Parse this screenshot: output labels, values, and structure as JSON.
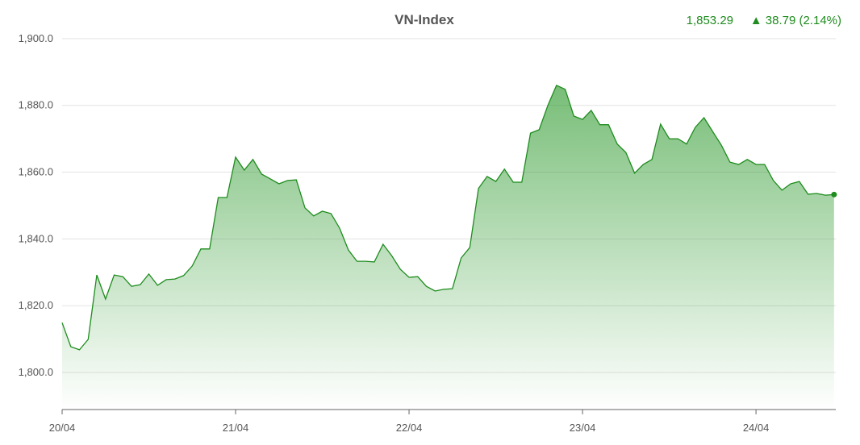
{
  "chart_data": {
    "type": "area",
    "title": "VN-Index",
    "last_value": "1,853.29",
    "change": "▲ 38.79 (2.14%)",
    "color": "#1e8c1e",
    "x": [
      0,
      0.05,
      0.1,
      0.15,
      0.2,
      0.25,
      0.3,
      0.35,
      0.4,
      0.45,
      0.5,
      0.55,
      0.6,
      0.65,
      0.7,
      0.75,
      0.8,
      0.85,
      0.9,
      0.95,
      1,
      1.05,
      1.1,
      1.15,
      1.2,
      1.25,
      1.3,
      1.35,
      1.4,
      1.45,
      1.5,
      1.55,
      1.6,
      1.65,
      1.7,
      1.75,
      1.8,
      1.85,
      1.9,
      1.95,
      2,
      2.05,
      2.1,
      2.15,
      2.2,
      2.25,
      2.3,
      2.35,
      2.4,
      2.45,
      2.5,
      2.55,
      2.6,
      2.65,
      2.7,
      2.75,
      2.8,
      2.85,
      2.9,
      2.95,
      3,
      3.05,
      3.1,
      3.15,
      3.2,
      3.25,
      3.3,
      3.35,
      3.4,
      3.45,
      3.5,
      3.55,
      3.6,
      3.65,
      3.7,
      3.75,
      3.8,
      3.85,
      3.9,
      3.95,
      4,
      4.05,
      4.1,
      4.15,
      4.2,
      4.25,
      4.3,
      4.35,
      4.4,
      4.45
    ],
    "values": [
      1814.9,
      1807.7,
      1806.8,
      1809.9,
      1829.2,
      1822.0,
      1829.2,
      1828.7,
      1825.8,
      1826.3,
      1829.5,
      1826.1,
      1827.8,
      1828.0,
      1829.0,
      1831.9,
      1837.0,
      1837.0,
      1852.4,
      1852.4,
      1864.5,
      1860.6,
      1863.8,
      1859.4,
      1858.0,
      1856.5,
      1857.5,
      1857.7,
      1849.3,
      1846.9,
      1848.3,
      1847.6,
      1843.2,
      1836.7,
      1833.3,
      1833.3,
      1833.1,
      1838.4,
      1835.0,
      1830.9,
      1828.5,
      1828.7,
      1825.8,
      1824.4,
      1824.9,
      1825.1,
      1834.3,
      1837.4,
      1855.1,
      1858.7,
      1857.2,
      1860.9,
      1857.0,
      1857.0,
      1871.7,
      1872.7,
      1880.0,
      1886.0,
      1884.8,
      1876.8,
      1875.8,
      1878.5,
      1874.2,
      1874.2,
      1868.4,
      1865.9,
      1859.7,
      1862.3,
      1863.8,
      1874.4,
      1870.0,
      1870.0,
      1868.4,
      1873.4,
      1876.3,
      1872.2,
      1868.1,
      1863.0,
      1862.3,
      1863.8,
      1862.3,
      1862.3,
      1857.5,
      1854.6,
      1856.5,
      1857.2,
      1853.4,
      1853.6,
      1853.1,
      1853.29
    ],
    "xlim": [
      0,
      4.46
    ],
    "xticks": [
      {
        "value": 0,
        "label": "20/04"
      },
      {
        "value": 1,
        "label": "21/04"
      },
      {
        "value": 2,
        "label": "22/04"
      },
      {
        "value": 3,
        "label": "23/04"
      },
      {
        "value": 4,
        "label": "24/04"
      }
    ],
    "ylim": [
      1788.9,
      1901.9
    ],
    "yticks": [
      {
        "value": 1800,
        "label": "1,800.0"
      },
      {
        "value": 1820,
        "label": "1,820.0"
      },
      {
        "value": 1840,
        "label": "1,840.0"
      },
      {
        "value": 1860,
        "label": "1,860.0"
      },
      {
        "value": 1880,
        "label": "1,880.0"
      },
      {
        "value": 1900,
        "label": "1,900.0"
      }
    ],
    "grid": true
  }
}
